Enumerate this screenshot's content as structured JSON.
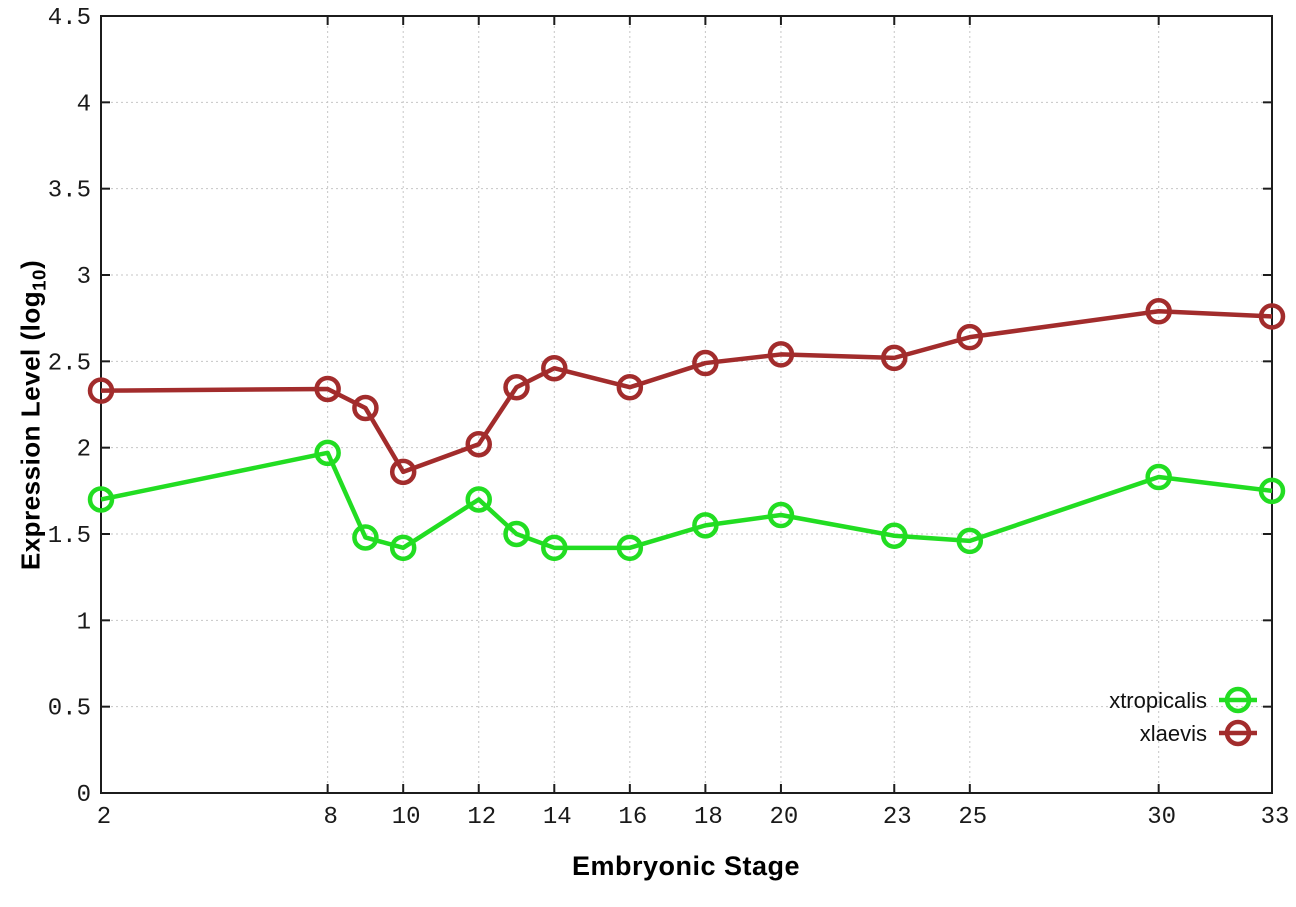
{
  "chart_data": {
    "type": "line",
    "title": "",
    "xlabel": "Embryonic Stage",
    "ylabel": "Expression Level (log_10)",
    "ylabel_parts": {
      "pre": "Expression Level (log",
      "sub": "10",
      "post": ")"
    },
    "x": [
      2,
      8,
      9,
      10,
      12,
      13,
      14,
      16,
      18,
      20,
      23,
      25,
      30,
      33
    ],
    "series": [
      {
        "name": "xtropicalis",
        "color": "#22dd22",
        "values": [
          1.7,
          1.97,
          1.48,
          1.42,
          1.7,
          1.5,
          1.42,
          1.42,
          1.55,
          1.61,
          1.49,
          1.46,
          1.83,
          1.75
        ]
      },
      {
        "name": "xlaevis",
        "color": "#a22c2c",
        "values": [
          2.33,
          2.34,
          2.23,
          1.86,
          2.02,
          2.35,
          2.46,
          2.35,
          2.49,
          2.54,
          2.52,
          2.64,
          2.79,
          2.76
        ]
      }
    ],
    "xlim": [
      2,
      33
    ],
    "ylim": [
      0,
      4.5
    ],
    "x_ticks": [
      2,
      8,
      10,
      12,
      14,
      16,
      18,
      20,
      23,
      25,
      30,
      33
    ],
    "y_ticks": [
      0,
      0.5,
      1,
      1.5,
      2,
      2.5,
      3,
      3.5,
      4,
      4.5
    ],
    "grid": true,
    "legend_position": "inside-right",
    "marker": "open-circle"
  },
  "colors": {
    "grid": "#c6c6c6",
    "axis": "#1c1c1c",
    "tick_label": "#1a1a1a",
    "background": "#ffffff"
  }
}
